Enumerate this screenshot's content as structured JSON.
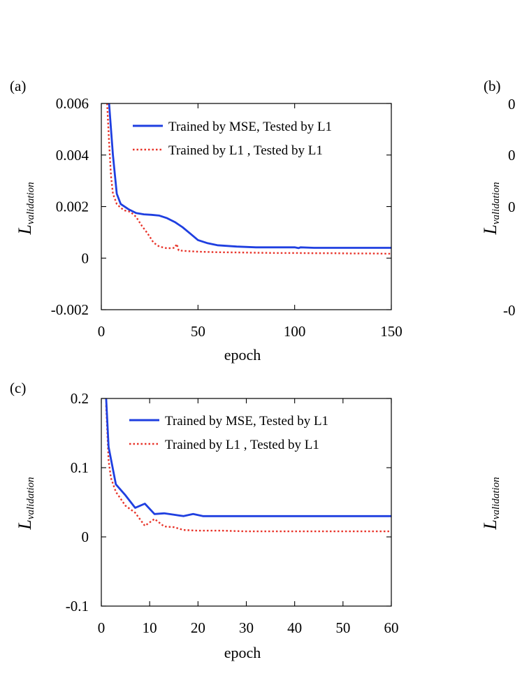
{
  "colors": {
    "mse": "#1f3fe0",
    "l1": "#e8342a"
  },
  "chart_data": [
    {
      "type": "line",
      "panel_label": "(a)",
      "xlabel": "epoch",
      "ylabel_main": "L",
      "ylabel_sub": "validation",
      "xlim": [
        0,
        150
      ],
      "ylim": [
        -0.002,
        0.006
      ],
      "xticks": [
        0,
        50,
        100,
        150
      ],
      "xtick_labels": [
        "0",
        "50",
        "100",
        "150"
      ],
      "yticks": [
        -0.002,
        0,
        0.002,
        0.004,
        0.006
      ],
      "ytick_labels": [
        "-0.002",
        "0",
        "0.002",
        "0.004",
        "0.006"
      ],
      "legend_position": "top-right",
      "grid": false,
      "series": [
        {
          "name": "Trained by MSE, Tested by L1",
          "style": "solid",
          "x": [
            4,
            6,
            8,
            10,
            14,
            18,
            22,
            26,
            30,
            34,
            38,
            42,
            46,
            50,
            55,
            60,
            70,
            80,
            90,
            100,
            102,
            103,
            110,
            120,
            130,
            140,
            150
          ],
          "y": [
            0.006,
            0.004,
            0.0025,
            0.0021,
            0.0019,
            0.00175,
            0.0017,
            0.00168,
            0.00165,
            0.00155,
            0.0014,
            0.0012,
            0.00095,
            0.0007,
            0.00058,
            0.0005,
            0.00045,
            0.00042,
            0.00042,
            0.00042,
            0.00039,
            0.00042,
            0.0004,
            0.0004,
            0.0004,
            0.0004,
            0.0004
          ]
        },
        {
          "name": "Trained by L1 , Tested by L1",
          "style": "dotted",
          "x": [
            3,
            4,
            5,
            6,
            8,
            10,
            12,
            15,
            18,
            21,
            24,
            27,
            30,
            34,
            38,
            39,
            40,
            45,
            50,
            60,
            70,
            80,
            90,
            100,
            110,
            120,
            130,
            140,
            150
          ],
          "y": [
            0.006,
            0.0045,
            0.0032,
            0.0025,
            0.0021,
            0.00195,
            0.00185,
            0.0018,
            0.0016,
            0.00125,
            0.00095,
            0.0006,
            0.00045,
            0.00038,
            0.0004,
            0.00055,
            0.0003,
            0.00027,
            0.00025,
            0.00023,
            0.00022,
            0.00021,
            0.0002,
            0.0002,
            0.00019,
            0.00019,
            0.00018,
            0.00018,
            0.00017
          ]
        }
      ]
    },
    {
      "type": "line",
      "panel_label": "(c)",
      "xlabel": "epoch",
      "ylabel_main": "L",
      "ylabel_sub": "validation",
      "xlim": [
        0,
        60
      ],
      "ylim": [
        -0.1,
        0.2
      ],
      "xticks": [
        0,
        10,
        20,
        30,
        40,
        50,
        60
      ],
      "xtick_labels": [
        "0",
        "10",
        "20",
        "30",
        "40",
        "50",
        "60"
      ],
      "yticks": [
        -0.1,
        0,
        0.1,
        0.2
      ],
      "ytick_labels": [
        "-0.1",
        "0",
        "0.1",
        "0.2"
      ],
      "legend_position": "top-right",
      "grid": false,
      "series": [
        {
          "name": "Trained by MSE, Tested by L1",
          "style": "solid",
          "x": [
            1,
            1.5,
            3,
            5,
            7,
            9,
            11,
            13,
            15,
            17,
            19,
            21,
            25,
            30,
            40,
            50,
            60
          ],
          "y": [
            0.2,
            0.13,
            0.076,
            0.06,
            0.042,
            0.048,
            0.033,
            0.034,
            0.032,
            0.03,
            0.033,
            0.03,
            0.03,
            0.03,
            0.03,
            0.03,
            0.03
          ],
          "_": ""
        },
        {
          "name": "Trained by L1 , Tested by L1",
          "style": "dotted",
          "x": [
            1,
            1.5,
            2,
            3,
            5,
            7,
            9,
            11,
            13,
            15,
            17,
            20,
            25,
            30,
            40,
            50,
            60
          ],
          "y": [
            0.19,
            0.11,
            0.085,
            0.065,
            0.045,
            0.035,
            0.016,
            0.026,
            0.015,
            0.014,
            0.01,
            0.009,
            0.009,
            0.008,
            0.008,
            0.008,
            0.008
          ]
        }
      ]
    }
  ],
  "cutoff_panels": {
    "b": {
      "panel_label": "(b)",
      "visible_ticks": [
        "0",
        "0",
        "0",
        "-0"
      ],
      "ylabel_main": "L",
      "ylabel_sub": "validation"
    },
    "d": {
      "ylabel_main": "L",
      "ylabel_sub": "validation"
    }
  }
}
